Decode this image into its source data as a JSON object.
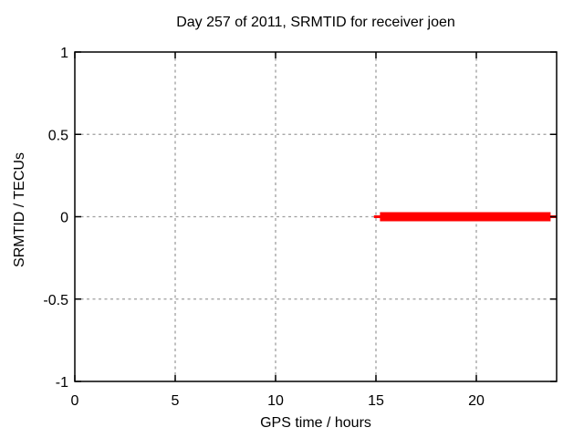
{
  "chart_data": {
    "type": "line",
    "title": "Day 257 of 2011, SRMTID for receiver joen",
    "xlabel": "GPS time / hours",
    "ylabel": "SRMTID / TECUs",
    "xlim": [
      0,
      24
    ],
    "ylim": [
      -1,
      1
    ],
    "xticks": [
      0,
      5,
      10,
      15,
      20
    ],
    "xtick_labels": [
      "0",
      "5",
      "10",
      "15",
      "20"
    ],
    "yticks": [
      -1,
      -0.5,
      0,
      0.5,
      1
    ],
    "ytick_labels": [
      "-1",
      "-0.5",
      "0",
      "0.5",
      "1"
    ],
    "grid": true,
    "legend": "none",
    "background_color": "#ffffff",
    "axis_color": "#000000",
    "grid_color": "#9e9e9e",
    "text_color": "#000000",
    "series": [
      {
        "name": "SRMTID",
        "color": "#ff0000",
        "y": 0,
        "x_start": 15.2,
        "x_end": 23.7,
        "tip_x_start": 14.9,
        "tip_x_end": 24.0,
        "line_width": 10,
        "tip_line_width": 3,
        "points": [
          [
            15.2,
            0
          ],
          [
            23.7,
            0
          ]
        ]
      }
    ]
  }
}
